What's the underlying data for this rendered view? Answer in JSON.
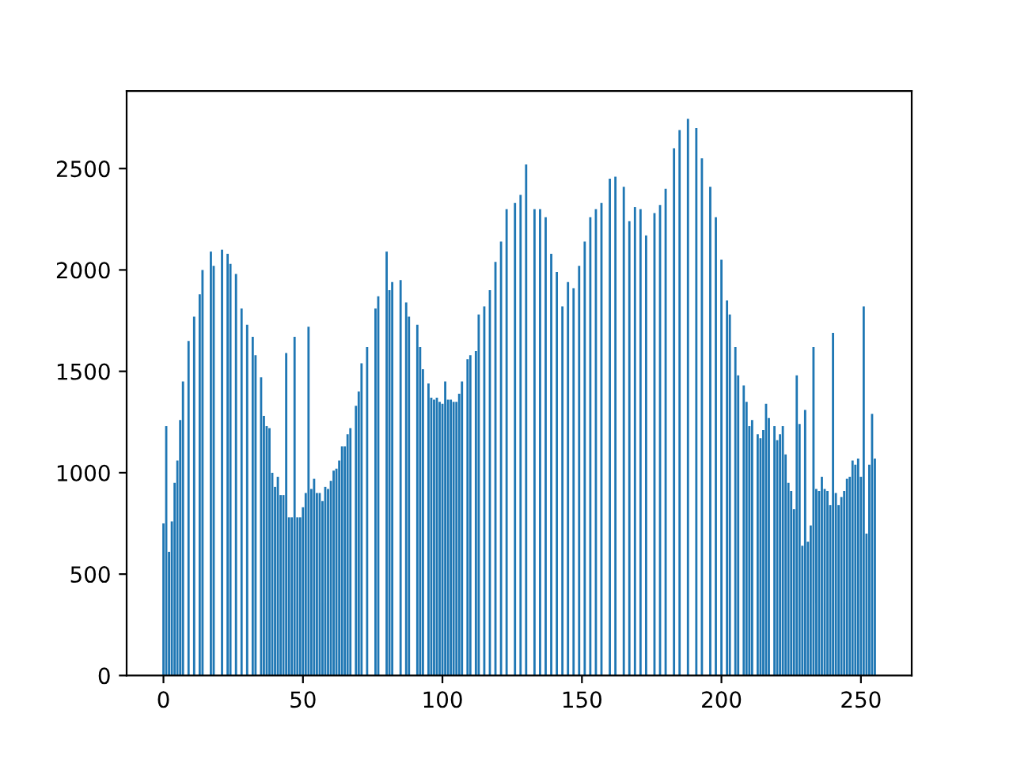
{
  "chart_data": {
    "type": "bar",
    "x": [
      0,
      1,
      2,
      3,
      4,
      5,
      6,
      7,
      8,
      9,
      10,
      11,
      12,
      13,
      14,
      15,
      16,
      17,
      18,
      19,
      20,
      21,
      22,
      23,
      24,
      25,
      26,
      27,
      28,
      29,
      30,
      31,
      32,
      33,
      34,
      35,
      36,
      37,
      38,
      39,
      40,
      41,
      42,
      43,
      44,
      45,
      46,
      47,
      48,
      49,
      50,
      51,
      52,
      53,
      54,
      55,
      56,
      57,
      58,
      59,
      60,
      61,
      62,
      63,
      64,
      65,
      66,
      67,
      68,
      69,
      70,
      71,
      72,
      73,
      74,
      75,
      76,
      77,
      78,
      79,
      80,
      81,
      82,
      83,
      84,
      85,
      86,
      87,
      88,
      89,
      90,
      91,
      92,
      93,
      94,
      95,
      96,
      97,
      98,
      99,
      100,
      101,
      102,
      103,
      104,
      105,
      106,
      107,
      108,
      109,
      110,
      111,
      112,
      113,
      114,
      115,
      116,
      117,
      118,
      119,
      120,
      121,
      122,
      123,
      124,
      125,
      126,
      127,
      128,
      129,
      130,
      131,
      132,
      133,
      134,
      135,
      136,
      137,
      138,
      139,
      140,
      141,
      142,
      143,
      144,
      145,
      146,
      147,
      148,
      149,
      150,
      151,
      152,
      153,
      154,
      155,
      156,
      157,
      158,
      159,
      160,
      161,
      162,
      163,
      164,
      165,
      166,
      167,
      168,
      169,
      170,
      171,
      172,
      173,
      174,
      175,
      176,
      177,
      178,
      179,
      180,
      181,
      182,
      183,
      184,
      185,
      186,
      187,
      188,
      189,
      190,
      191,
      192,
      193,
      194,
      195,
      196,
      197,
      198,
      199,
      200,
      201,
      202,
      203,
      204,
      205,
      206,
      207,
      208,
      209,
      210,
      211,
      212,
      213,
      214,
      215,
      216,
      217,
      218,
      219,
      220,
      221,
      222,
      223,
      224,
      225,
      226,
      227,
      228,
      229,
      230,
      231,
      232,
      233,
      234,
      235,
      236,
      237,
      238,
      239,
      240,
      241,
      242,
      243,
      244,
      245,
      246,
      247,
      248,
      249,
      250,
      251,
      252,
      253,
      254,
      255
    ],
    "values": [
      750,
      1230,
      610,
      760,
      950,
      1060,
      1260,
      1450,
      0,
      1650,
      0,
      1770,
      0,
      1880,
      2000,
      0,
      0,
      2090,
      2020,
      0,
      0,
      2100,
      0,
      2080,
      2030,
      0,
      1980,
      0,
      1810,
      0,
      1730,
      0,
      1670,
      1580,
      0,
      1470,
      1280,
      1230,
      1220,
      1000,
      930,
      980,
      890,
      890,
      1590,
      780,
      780,
      1670,
      780,
      780,
      830,
      900,
      1720,
      920,
      970,
      900,
      900,
      860,
      930,
      920,
      960,
      1010,
      1020,
      1060,
      1130,
      1130,
      1190,
      1220,
      0,
      1330,
      1400,
      1540,
      0,
      1620,
      0,
      0,
      1810,
      1870,
      0,
      0,
      2090,
      1900,
      1940,
      0,
      0,
      1950,
      0,
      1840,
      1770,
      0,
      0,
      1730,
      1620,
      1510,
      0,
      1440,
      1370,
      1360,
      1370,
      1350,
      1340,
      1450,
      1360,
      1360,
      1350,
      1350,
      1390,
      1450,
      0,
      1560,
      1580,
      0,
      1600,
      1780,
      0,
      1820,
      0,
      1900,
      0,
      2040,
      0,
      2140,
      0,
      2300,
      0,
      0,
      2330,
      0,
      2370,
      0,
      2520,
      0,
      0,
      2300,
      0,
      2300,
      0,
      2260,
      0,
      2080,
      0,
      1990,
      0,
      1820,
      0,
      1940,
      0,
      1910,
      0,
      2020,
      0,
      2140,
      0,
      2260,
      0,
      2300,
      0,
      2330,
      0,
      0,
      2450,
      0,
      2460,
      0,
      0,
      2410,
      0,
      2240,
      0,
      2310,
      0,
      2300,
      0,
      2170,
      0,
      0,
      2280,
      0,
      2320,
      0,
      2400,
      0,
      0,
      2600,
      0,
      2690,
      0,
      0,
      2745,
      0,
      0,
      2700,
      0,
      2550,
      0,
      0,
      2410,
      0,
      2260,
      0,
      2050,
      0,
      1850,
      1780,
      0,
      1620,
      1480,
      0,
      1430,
      1350,
      1230,
      1260,
      0,
      1190,
      1170,
      1210,
      1340,
      1270,
      0,
      1230,
      1160,
      1190,
      1230,
      1090,
      950,
      910,
      820,
      1480,
      1240,
      640,
      1310,
      660,
      740,
      1620,
      920,
      910,
      980,
      920,
      910,
      840,
      1690,
      900,
      840,
      880,
      910,
      970,
      980,
      1060,
      1040,
      1070,
      980,
      1820,
      700,
      1040,
      1290,
      1070
    ],
    "color": "#1f77b4",
    "xlim": [
      -13.2,
      268.2
    ],
    "xticks": [
      0,
      50,
      100,
      150,
      200,
      250
    ],
    "ylim": [
      0,
      2882
    ],
    "yticks": [
      0,
      500,
      1000,
      1500,
      2000,
      2500
    ],
    "grid": false
  }
}
